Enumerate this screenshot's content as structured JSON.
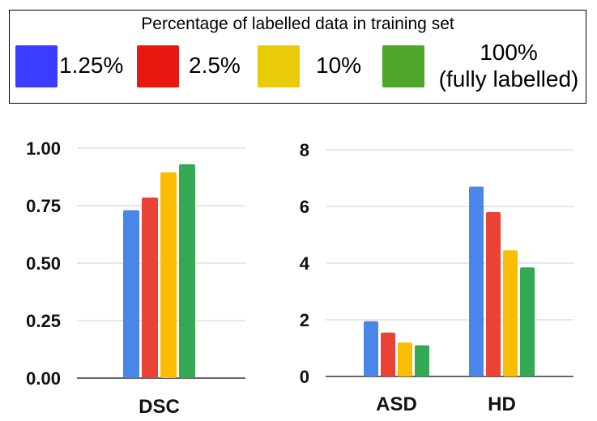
{
  "legend": {
    "title": "Percentage of labelled data in training set",
    "items": [
      {
        "label": "1.25%",
        "color": "#3a3cff"
      },
      {
        "label": "2.5%",
        "color": "#e8170f"
      },
      {
        "label": "10%",
        "color": "#e8cc0a"
      },
      {
        "label": "100%\n(fully labelled)",
        "color": "#4fa52a"
      }
    ]
  },
  "chart_data": [
    {
      "type": "bar",
      "title": "",
      "categories": [
        "DSC"
      ],
      "ylim": [
        0,
        1
      ],
      "yticks": [
        "0.00",
        "0.25",
        "0.50",
        "0.75",
        "1.00"
      ],
      "ytick_values": [
        0,
        0.25,
        0.5,
        0.75,
        1.0
      ],
      "grid": true,
      "series": [
        {
          "name": "1.25%",
          "color": "#4a86e8",
          "values": [
            0.73
          ]
        },
        {
          "name": "2.5%",
          "color": "#ea4335",
          "values": [
            0.785
          ]
        },
        {
          "name": "10%",
          "color": "#fbbc04",
          "values": [
            0.895
          ]
        },
        {
          "name": "100% (fully labelled)",
          "color": "#34a853",
          "values": [
            0.93
          ]
        }
      ]
    },
    {
      "type": "bar",
      "title": "",
      "categories": [
        "ASD",
        "HD"
      ],
      "ylim": [
        0,
        8
      ],
      "yticks": [
        "0",
        "2",
        "4",
        "6",
        "8"
      ],
      "ytick_values": [
        0,
        2,
        4,
        6,
        8
      ],
      "grid": true,
      "series": [
        {
          "name": "1.25%",
          "color": "#4a86e8",
          "values": [
            1.95,
            6.7
          ]
        },
        {
          "name": "2.5%",
          "color": "#ea4335",
          "values": [
            1.55,
            5.8
          ]
        },
        {
          "name": "10%",
          "color": "#fbbc04",
          "values": [
            1.2,
            4.45
          ]
        },
        {
          "name": "100% (fully labelled)",
          "color": "#34a853",
          "values": [
            1.1,
            3.85
          ]
        }
      ]
    }
  ]
}
